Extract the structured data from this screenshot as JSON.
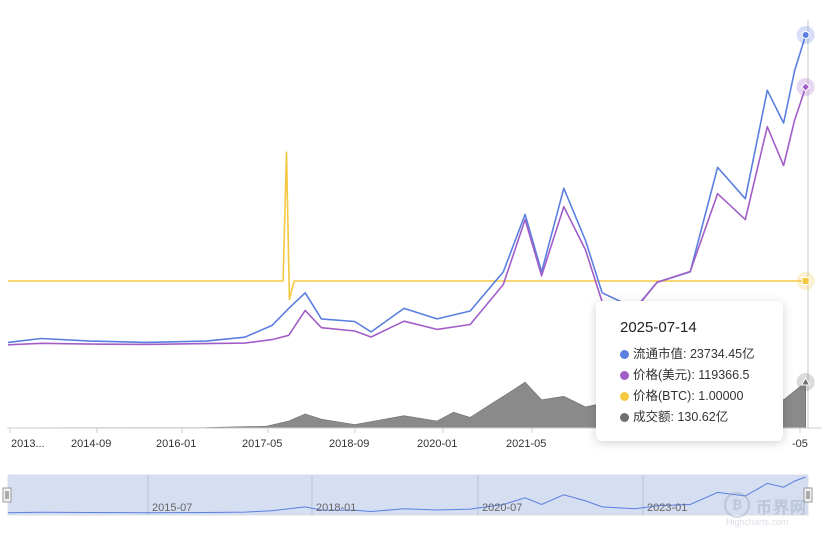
{
  "chart_data": {
    "type": "line",
    "x_axis_ticks": [
      "2013...",
      "2014-09",
      "2016-01",
      "2017-05",
      "2018-09",
      "2020-01",
      "2021-05",
      "",
      "",
      "-05"
    ],
    "navigator_ticks": [
      "2015-07",
      "2018-01",
      "2020-07",
      "2023-01"
    ],
    "series": [
      {
        "name": "流通市值",
        "color": "#5b7fe0",
        "points": [
          [
            "2013-06",
            0.02
          ],
          [
            "2013-12",
            0.05
          ],
          [
            "2014-09",
            0.03
          ],
          [
            "2015-07",
            0.02
          ],
          [
            "2016-06",
            0.03
          ],
          [
            "2017-01",
            0.06
          ],
          [
            "2017-06",
            0.15
          ],
          [
            "2017-09",
            0.28
          ],
          [
            "2017-12",
            0.4
          ],
          [
            "2018-03",
            0.2
          ],
          [
            "2018-09",
            0.18
          ],
          [
            "2018-12",
            0.1
          ],
          [
            "2019-06",
            0.28
          ],
          [
            "2019-12",
            0.2
          ],
          [
            "2020-06",
            0.26
          ],
          [
            "2020-12",
            0.56
          ],
          [
            "2021-04",
            1.0
          ],
          [
            "2021-07",
            0.56
          ],
          [
            "2021-11",
            1.2
          ],
          [
            "2022-03",
            0.8
          ],
          [
            "2022-06",
            0.4
          ],
          [
            "2022-12",
            0.28
          ],
          [
            "2023-04",
            0.48
          ],
          [
            "2023-10",
            0.56
          ],
          [
            "2024-03",
            1.36
          ],
          [
            "2024-08",
            1.12
          ],
          [
            "2024-12",
            1.95
          ],
          [
            "2025-03",
            1.7
          ],
          [
            "2025-05",
            2.1
          ],
          [
            "2025-07",
            2.373445
          ]
        ]
      },
      {
        "name": "价格(美元)",
        "color": "#a25ec8",
        "points": [
          [
            "2013-06",
            100
          ],
          [
            "2013-12",
            800
          ],
          [
            "2014-09",
            400
          ],
          [
            "2015-07",
            280
          ],
          [
            "2016-06",
            650
          ],
          [
            "2017-01",
            900
          ],
          [
            "2017-06",
            2500
          ],
          [
            "2017-09",
            4500
          ],
          [
            "2017-12",
            16000
          ],
          [
            "2018-03",
            8000
          ],
          [
            "2018-09",
            6500
          ],
          [
            "2018-12",
            3700
          ],
          [
            "2019-06",
            11000
          ],
          [
            "2019-12",
            7200
          ],
          [
            "2020-06",
            9500
          ],
          [
            "2020-12",
            28000
          ],
          [
            "2021-04",
            58000
          ],
          [
            "2021-07",
            32000
          ],
          [
            "2021-11",
            64000
          ],
          [
            "2022-03",
            44000
          ],
          [
            "2022-06",
            20000
          ],
          [
            "2022-12",
            16500
          ],
          [
            "2023-04",
            29000
          ],
          [
            "2023-10",
            34000
          ],
          [
            "2024-03",
            70000
          ],
          [
            "2024-08",
            58000
          ],
          [
            "2024-12",
            101000
          ],
          [
            "2025-03",
            83000
          ],
          [
            "2025-05",
            104000
          ],
          [
            "2025-07",
            119366.5
          ]
        ]
      },
      {
        "name": "价格(BTC)",
        "color": "#f5c842",
        "points": [
          [
            "2013-06",
            1
          ],
          [
            "2017-08",
            1
          ],
          [
            "2017-08-20",
            3.8
          ],
          [
            "2017-09-05",
            0.6
          ],
          [
            "2017-10",
            1
          ],
          [
            "2025-07",
            1
          ]
        ]
      },
      {
        "name": "成交额",
        "color": "#6e6e6e",
        "points": [
          [
            "2013-06",
            0.5
          ],
          [
            "2016-06",
            1
          ],
          [
            "2017-05",
            5
          ],
          [
            "2017-09",
            20
          ],
          [
            "2017-12",
            40
          ],
          [
            "2018-03",
            25
          ],
          [
            "2018-09",
            10
          ],
          [
            "2019-06",
            35
          ],
          [
            "2019-12",
            20
          ],
          [
            "2020-03",
            45
          ],
          [
            "2020-06",
            30
          ],
          [
            "2020-10",
            70
          ],
          [
            "2021-01",
            100
          ],
          [
            "2021-04",
            130
          ],
          [
            "2021-07",
            80
          ],
          [
            "2021-11",
            90
          ],
          [
            "2022-03",
            60
          ],
          [
            "2022-06",
            70
          ],
          [
            "2022-12",
            30
          ],
          [
            "2023-06",
            40
          ],
          [
            "2024-03",
            80
          ],
          [
            "2024-08",
            60
          ],
          [
            "2024-12",
            110
          ],
          [
            "2025-03",
            80
          ],
          [
            "2025-07",
            130.62
          ]
        ]
      }
    ],
    "tooltip": {
      "date": "2025-07-14",
      "rows": [
        {
          "label": "流通市值",
          "value": "23734.45亿",
          "color": "#5b7fe0"
        },
        {
          "label": "价格(美元)",
          "value": "119366.5",
          "color": "#a25ec8"
        },
        {
          "label": "价格(BTC)",
          "value": "1.00000",
          "color": "#f5c842"
        },
        {
          "label": "成交额",
          "value": "130.62亿",
          "color": "#6e6e6e"
        }
      ]
    },
    "legend": "none",
    "grid": false
  },
  "watermark": {
    "brand": "币界网",
    "credit": "Highcharts.com"
  }
}
